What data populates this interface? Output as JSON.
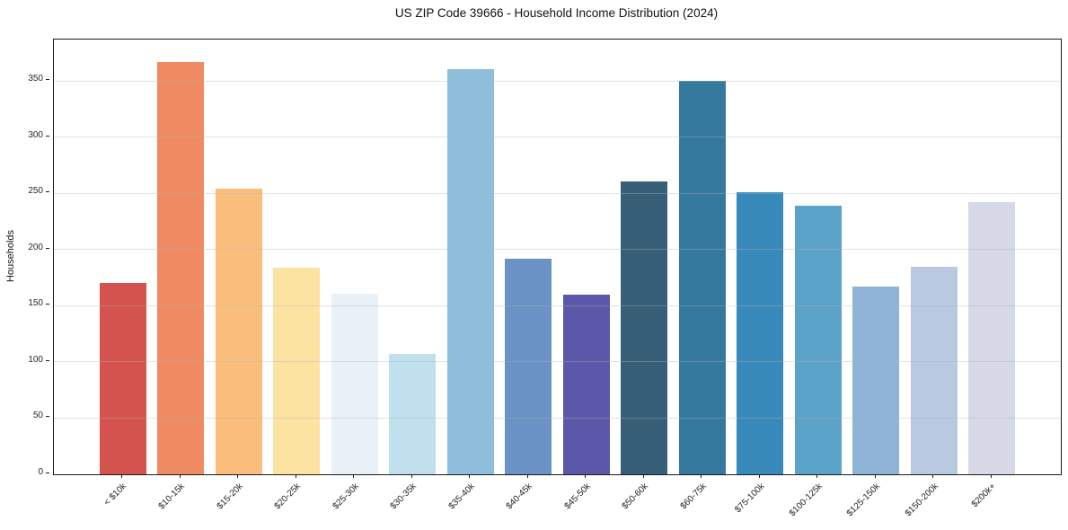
{
  "chart_data": {
    "type": "bar",
    "title": "US ZIP Code 39666 - Household Income Distribution (2024)",
    "xlabel": "",
    "ylabel": "Households",
    "categories": [
      "< $10k",
      "$10-15k",
      "$15-20k",
      "$20-25k",
      "$25-30k",
      "$30-35k",
      "$35-40k",
      "$40-45k",
      "$45-50k",
      "$50-60k",
      "$60-75k",
      "$75-100k",
      "$100-125k",
      "$125-150k",
      "$150-200k",
      "$200k+"
    ],
    "values": [
      170,
      367,
      254,
      184,
      161,
      107,
      361,
      192,
      160,
      261,
      350,
      251,
      239,
      167,
      185,
      242
    ],
    "bar_colors": [
      "#d4534e",
      "#f08a62",
      "#fbbd7c",
      "#fce3a2",
      "#e7f1f6",
      "#bfe0ec",
      "#8fbddc",
      "#6b92c4",
      "#5b58a9",
      "#375f78",
      "#35799e",
      "#388aba",
      "#5ba3c9",
      "#8fb4d8",
      "#b8c9e1",
      "#d7d9e7"
    ],
    "yticks": [
      0,
      50,
      100,
      150,
      200,
      250,
      300,
      350
    ],
    "ylim": [
      0,
      387
    ],
    "grid": "horizontal",
    "legend": "none",
    "plot_background": "#ffffff",
    "spine_color": "#1a1a1a"
  }
}
